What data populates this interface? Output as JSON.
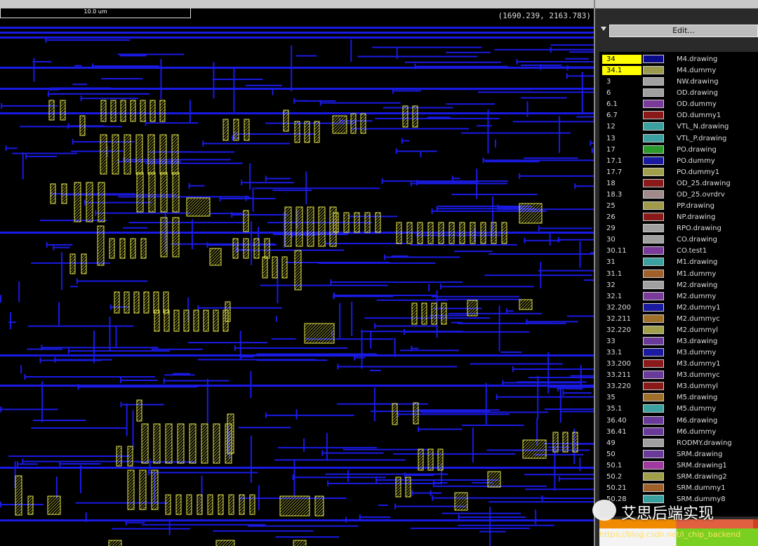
{
  "toolbar": {
    "scale_label": "10.0 um",
    "coordinates": "(1690.239, 2163.783)",
    "edit_button": "Edit..."
  },
  "layers": [
    {
      "number": "34",
      "name": "M4.drawing",
      "color": "#0a0a8a",
      "selected": true
    },
    {
      "number": "34.1",
      "name": "M4.dummy",
      "color": "#9a9a4a",
      "selected": true
    },
    {
      "number": "3",
      "name": "NW.drawing",
      "color": "#a0a0a0"
    },
    {
      "number": "6",
      "name": "OD.drawing",
      "color": "#a0a0a0"
    },
    {
      "number": "6.1",
      "name": "OD.dummy",
      "color": "#7a3a9a"
    },
    {
      "number": "6.7",
      "name": "OD.dummy1",
      "color": "#8a1a1a"
    },
    {
      "number": "12",
      "name": "VTL_N.drawing",
      "color": "#3aa0a0"
    },
    {
      "number": "13",
      "name": "VTL_P.drawing",
      "color": "#3aa0a0"
    },
    {
      "number": "17",
      "name": "PO.drawing",
      "color": "#2a9a2a"
    },
    {
      "number": "17.1",
      "name": "PO.dummy",
      "color": "#1a1aa0"
    },
    {
      "number": "17.7",
      "name": "PO.dummy1",
      "color": "#a0a04a"
    },
    {
      "number": "18",
      "name": "OD_25.drawing",
      "color": "#8a1a1a"
    },
    {
      "number": "18.3",
      "name": "OD_25.ovrdrv",
      "color": "#a08a8a"
    },
    {
      "number": "25",
      "name": "PP.drawing",
      "color": "#a09a4a"
    },
    {
      "number": "26",
      "name": "NP.drawing",
      "color": "#8a1a1a"
    },
    {
      "number": "29",
      "name": "RPO.drawing",
      "color": "#a0a0a0"
    },
    {
      "number": "30",
      "name": "CO.drawing",
      "color": "#a0a0a0"
    },
    {
      "number": "30.11",
      "name": "CO.test1",
      "color": "#7a3a9a"
    },
    {
      "number": "31",
      "name": "M1.drawing",
      "color": "#3aa0a0"
    },
    {
      "number": "31.1",
      "name": "M1.dummy",
      "color": "#a0602a"
    },
    {
      "number": "32",
      "name": "M2.drawing",
      "color": "#a0a0a0"
    },
    {
      "number": "32.1",
      "name": "M2.dummy",
      "color": "#7a3a9a"
    },
    {
      "number": "32.200",
      "name": "M2.dummy1",
      "color": "#1a1aa0"
    },
    {
      "number": "32.211",
      "name": "M2.dummyc",
      "color": "#a0702a"
    },
    {
      "number": "32.220",
      "name": "M2.dummyl",
      "color": "#a0a04a"
    },
    {
      "number": "33",
      "name": "M3.drawing",
      "color": "#6a3a9a"
    },
    {
      "number": "33.1",
      "name": "M3.dummy",
      "color": "#1a1aa0"
    },
    {
      "number": "33.200",
      "name": "M3.dummy1",
      "color": "#8a1a1a"
    },
    {
      "number": "33.211",
      "name": "M3.dummyc",
      "color": "#6a3a9a"
    },
    {
      "number": "33.220",
      "name": "M3.dummyl",
      "color": "#8a1a1a"
    },
    {
      "number": "35",
      "name": "M5.drawing",
      "color": "#a0702a"
    },
    {
      "number": "35.1",
      "name": "M5.dummy",
      "color": "#3aa0a0"
    },
    {
      "number": "36.40",
      "name": "M6.drawing",
      "color": "#6a3a9a"
    },
    {
      "number": "36.41",
      "name": "M6.dummy",
      "color": "#6a3a9a"
    },
    {
      "number": "49",
      "name": "RODMY.drawing",
      "color": "#a0a0a0"
    },
    {
      "number": "50",
      "name": "SRM.drawing",
      "color": "#6a3a9a"
    },
    {
      "number": "50.1",
      "name": "SRM.drawing1",
      "color": "#a03aa0"
    },
    {
      "number": "50.2",
      "name": "SRM.drawing2",
      "color": "#a0a04a"
    },
    {
      "number": "50.21",
      "name": "SRM.dummy1",
      "color": "#a0602a"
    },
    {
      "number": "50.28",
      "name": "SRM.dummy8",
      "color": "#3aa0a0"
    }
  ],
  "watermark": "艾思后端实现",
  "url": "https://blog.csdn.net/i_chip_backend"
}
